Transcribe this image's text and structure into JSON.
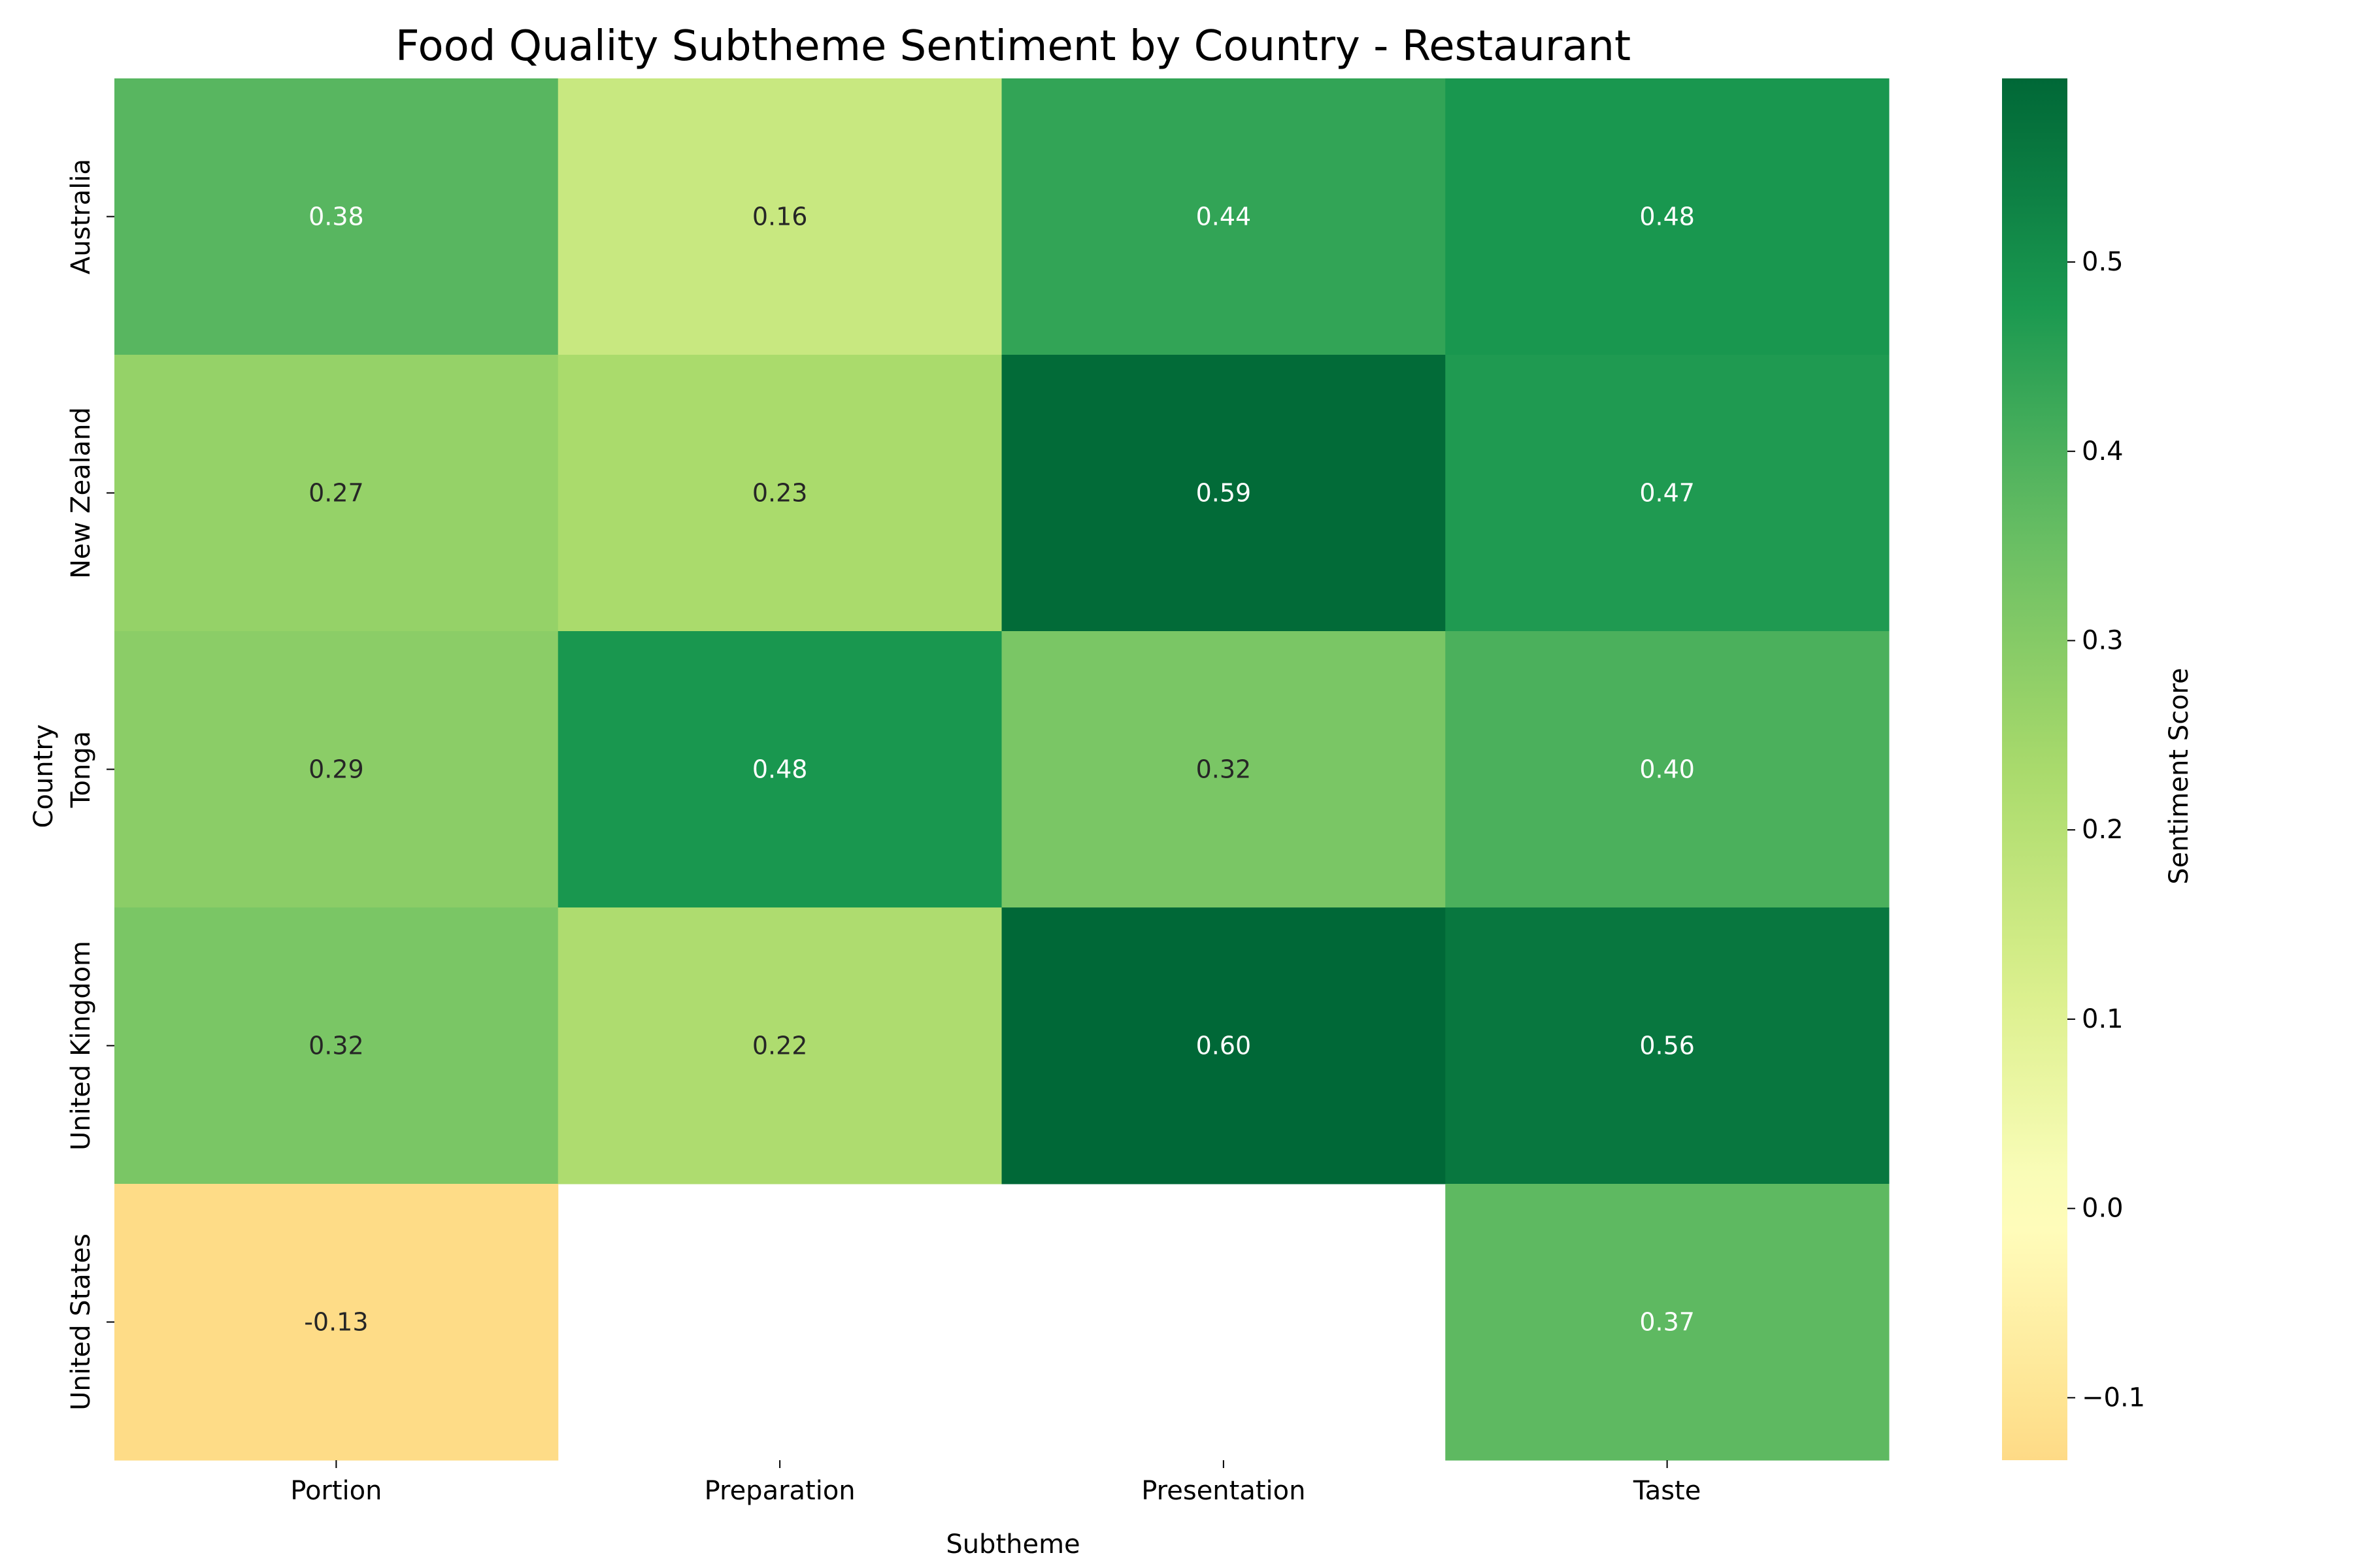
{
  "chart_data": {
    "type": "heatmap",
    "title": "Food Quality Subtheme Sentiment by Country - Restaurant",
    "xlabel": "Subtheme",
    "ylabel": "Country",
    "x_categories": [
      "Portion",
      "Preparation",
      "Presentation",
      "Taste"
    ],
    "y_categories": [
      "Australia",
      "New Zealand",
      "Tonga",
      "United Kingdom",
      "United States"
    ],
    "values": [
      [
        0.38,
        0.16,
        0.44,
        0.48
      ],
      [
        0.27,
        0.23,
        0.59,
        0.47
      ],
      [
        0.29,
        0.48,
        0.32,
        0.4
      ],
      [
        0.32,
        0.22,
        0.6,
        0.56
      ],
      [
        -0.13,
        null,
        null,
        0.37
      ]
    ],
    "cell_labels": [
      [
        "0.38",
        "0.16",
        "0.44",
        "0.48"
      ],
      [
        "0.27",
        "0.23",
        "0.59",
        "0.47"
      ],
      [
        "0.29",
        "0.48",
        "0.32",
        "0.40"
      ],
      [
        "0.32",
        "0.22",
        "0.60",
        "0.56"
      ],
      [
        "-0.13",
        "",
        "",
        "0.37"
      ]
    ],
    "colorbar": {
      "label": "Sentiment Score",
      "range": [
        -0.133,
        0.597
      ],
      "center": 0,
      "colormap": "RdYlGn",
      "ticks": [
        -0.1,
        0.0,
        0.1,
        0.2,
        0.3,
        0.4,
        0.5
      ],
      "tick_labels": [
        "−0.1",
        "0.0",
        "0.1",
        "0.2",
        "0.3",
        "0.4",
        "0.5"
      ]
    },
    "grid": false
  }
}
